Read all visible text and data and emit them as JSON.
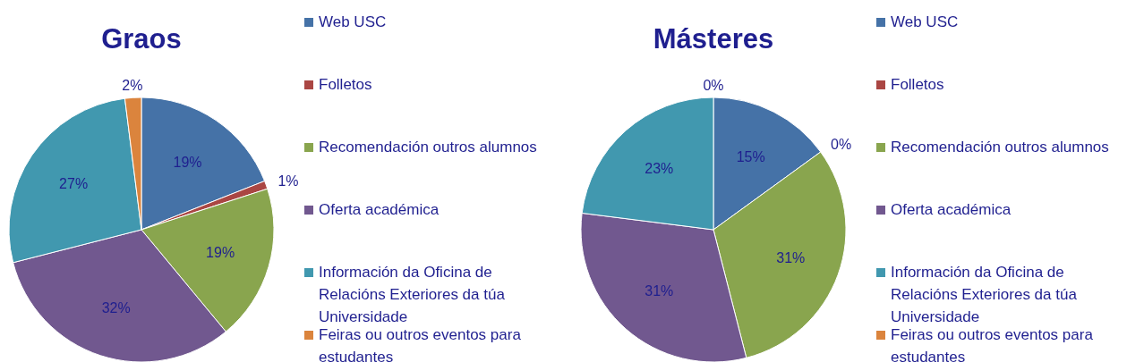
{
  "chart_data": [
    {
      "type": "pie",
      "title": "Graos",
      "categories": [
        "Web USC",
        "Folletos",
        "Recomendación outros alumnos",
        "Oferta académica",
        "Información da Oficina de Relacións Exteriores da túa Universidade",
        "Feiras ou outros eventos para estudantes"
      ],
      "values": [
        19,
        1,
        19,
        32,
        27,
        2
      ],
      "value_labels": [
        "19%",
        "1%",
        "19%",
        "32%",
        "27%",
        "2%"
      ],
      "colors": [
        "#4572a7",
        "#aa4643",
        "#89a54e",
        "#71588f",
        "#4198af",
        "#db843d"
      ],
      "legend": "right"
    },
    {
      "type": "pie",
      "title": "Másteres",
      "categories": [
        "Web USC",
        "Folletos",
        "Recomendación outros alumnos",
        "Oferta académica",
        "Información da Oficina de Relacións Exteriores da túa Universidade",
        "Feiras ou outros eventos para estudantes"
      ],
      "values": [
        15,
        0,
        31,
        31,
        23,
        0
      ],
      "value_labels": [
        "15%",
        "0%",
        "31%",
        "31%",
        "23%",
        "0%"
      ],
      "colors": [
        "#4572a7",
        "#aa4643",
        "#89a54e",
        "#71588f",
        "#4198af",
        "#db843d"
      ],
      "legend": "right"
    }
  ]
}
